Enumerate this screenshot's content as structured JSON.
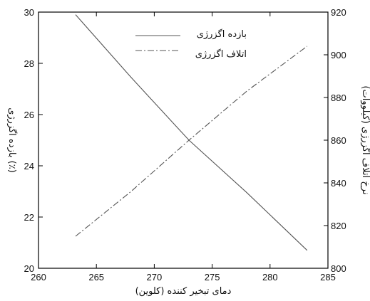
{
  "chart_data": {
    "type": "line",
    "xlabel": "دمای تبخیر کننده (کلوین)",
    "ylabel_left": "بازده اگزرژی (٪)",
    "ylabel_right": "نرخ اتلاف اگزرژی (کیلووات)",
    "xlim": [
      260,
      285
    ],
    "ylim_left": [
      20,
      30
    ],
    "ylim_right": [
      800,
      920
    ],
    "x_ticks": [
      "260",
      "265",
      "270",
      "275",
      "280",
      "285"
    ],
    "y_left_ticks": [
      "20",
      "22",
      "24",
      "26",
      "28",
      "30"
    ],
    "y_right_ticks": [
      "800",
      "820",
      "840",
      "860",
      "880",
      "900",
      "920"
    ],
    "grid": false,
    "legend_position": "top-center",
    "series": [
      {
        "name": "بازده اگزرژی",
        "axis": "left",
        "style": "solid",
        "x": [
          263.2,
          268,
          273,
          278,
          283.2
        ],
        "y": [
          29.9,
          27.45,
          25.0,
          22.95,
          20.7
        ]
      },
      {
        "name": "اتلاف اگزرژی",
        "axis": "right",
        "style": "dashdot",
        "x": [
          263.2,
          268,
          273,
          278,
          283.2
        ],
        "y": [
          815,
          836,
          860,
          883,
          904
        ]
      }
    ]
  }
}
